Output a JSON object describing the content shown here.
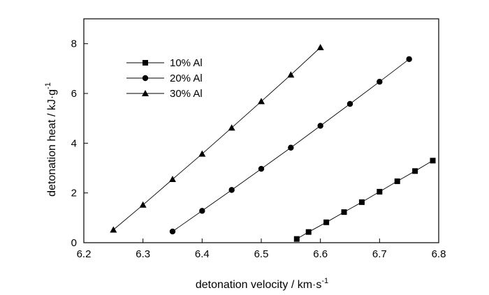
{
  "chart_data": {
    "type": "line",
    "title": "",
    "xlabel": "detonation  velocity / km·s",
    "xlabel_sup": "-1",
    "ylabel": "detonation heat / kJ·g",
    "ylabel_sup": "-1",
    "xlim": [
      6.2,
      6.8
    ],
    "ylim": [
      0,
      9
    ],
    "x_ticks": [
      6.2,
      6.3,
      6.4,
      6.5,
      6.6,
      6.7,
      6.8
    ],
    "x_tick_labels": [
      "6.2",
      "6.3",
      "6.4",
      "6.5",
      "6.6",
      "6.7",
      "6.8"
    ],
    "y_ticks": [
      0,
      2,
      4,
      6,
      8
    ],
    "y_tick_labels": [
      "0",
      "2",
      "4",
      "6",
      "8"
    ],
    "grid": false,
    "legend_position": "top-left",
    "series": [
      {
        "name": "10% Al",
        "marker": "square",
        "x": [
          6.56,
          6.58,
          6.61,
          6.64,
          6.67,
          6.7,
          6.73,
          6.76,
          6.79
        ],
        "y": [
          0.15,
          0.43,
          0.82,
          1.23,
          1.63,
          2.05,
          2.47,
          2.88,
          3.3
        ]
      },
      {
        "name": "20% Al",
        "marker": "circle",
        "x": [
          6.35,
          6.4,
          6.45,
          6.5,
          6.55,
          6.6,
          6.65,
          6.7,
          6.75
        ],
        "y": [
          0.45,
          1.28,
          2.12,
          2.97,
          3.82,
          4.7,
          5.58,
          6.47,
          7.38
        ]
      },
      {
        "name": "30% Al",
        "marker": "triangle",
        "x": [
          6.25,
          6.3,
          6.35,
          6.4,
          6.45,
          6.5,
          6.55,
          6.6
        ],
        "y": [
          0.52,
          1.52,
          2.55,
          3.57,
          4.62,
          5.68,
          6.75,
          7.85
        ]
      }
    ]
  }
}
